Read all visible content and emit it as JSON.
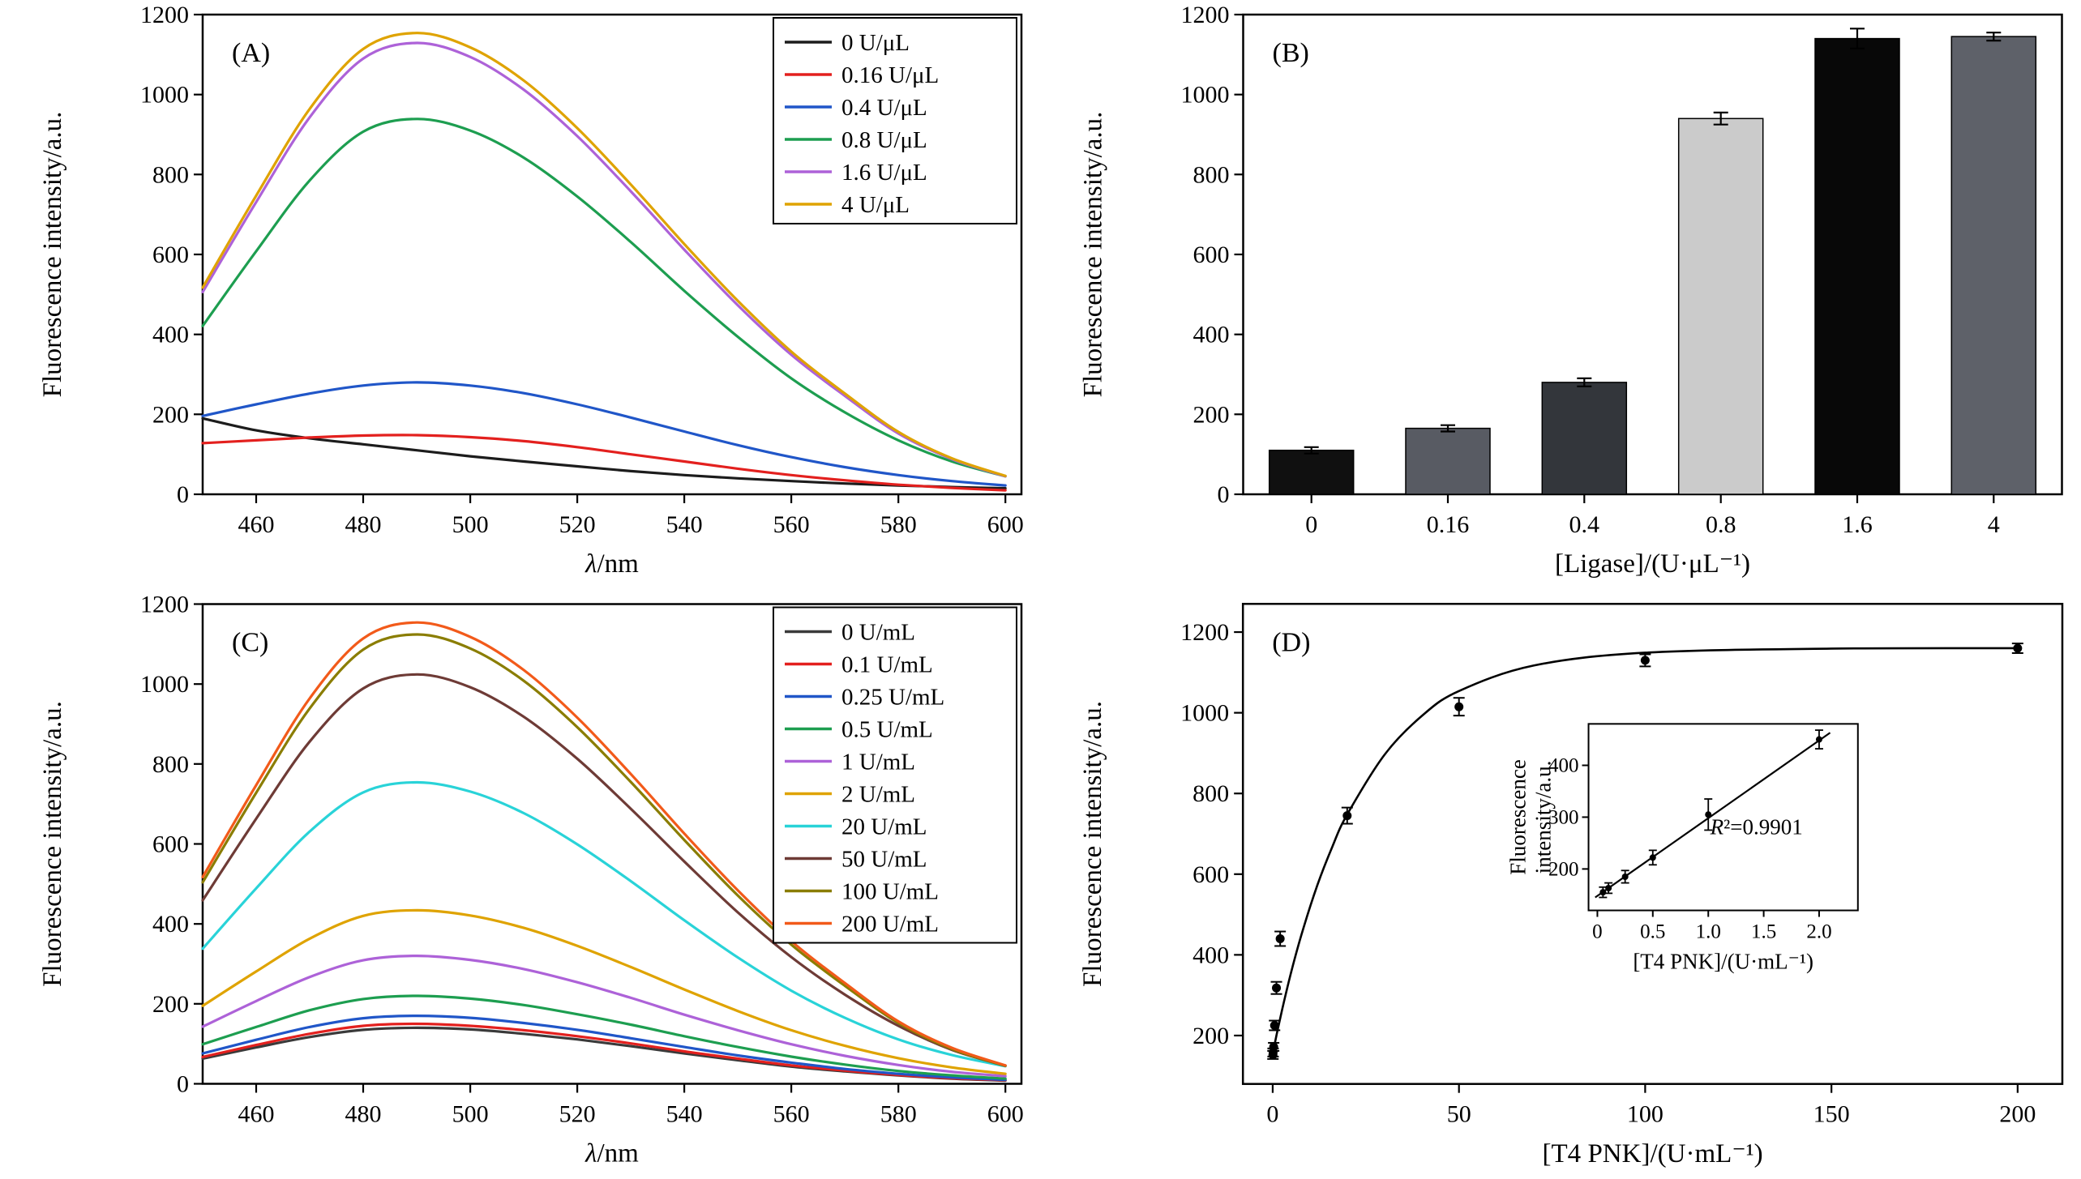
{
  "figure": {
    "background": "#ffffff",
    "text_color": "#000000"
  },
  "chart_data": [
    {
      "id": "panel-a",
      "type": "line",
      "panel_label": "(A)",
      "xlabel": "λ/nm",
      "ylabel": "Fluorescence intensity/a.u.",
      "xlim": [
        450,
        603
      ],
      "ylim": [
        0,
        1200
      ],
      "xticks": [
        460,
        480,
        500,
        520,
        540,
        560,
        580,
        600
      ],
      "yticks": [
        0,
        200,
        400,
        600,
        800,
        1000,
        1200
      ],
      "legend_position": "top-right",
      "x": [
        450,
        460,
        470,
        480,
        490,
        500,
        510,
        520,
        530,
        540,
        550,
        560,
        570,
        580,
        590,
        600
      ],
      "series": [
        {
          "name": "0 U/μL",
          "color": "#1c1c1c",
          "values": [
            190,
            160,
            140,
            125,
            110,
            95,
            82,
            70,
            58,
            48,
            40,
            33,
            27,
            22,
            18,
            15
          ]
        },
        {
          "name": "0.16 U/μL",
          "color": "#e3201e",
          "values": [
            128,
            135,
            142,
            147,
            148,
            143,
            133,
            118,
            100,
            82,
            64,
            48,
            35,
            24,
            16,
            10
          ]
        },
        {
          "name": "0.4 U/μL",
          "color": "#2056c8",
          "values": [
            196,
            225,
            252,
            272,
            280,
            272,
            253,
            225,
            192,
            157,
            123,
            93,
            68,
            48,
            33,
            22
          ]
        },
        {
          "name": "0.8 U/μL",
          "color": "#1d9e50",
          "values": [
            421,
            608,
            785,
            907,
            939,
            910,
            842,
            745,
            631,
            509,
            394,
            290,
            205,
            135,
            82,
            45
          ]
        },
        {
          "name": "1.6 U/μL",
          "color": "#ad62d8",
          "values": [
            506,
            731,
            943,
            1090,
            1129,
            1094,
            1012,
            896,
            758,
            612,
            473,
            349,
            246,
            152,
            88,
            45
          ]
        },
        {
          "name": "4 U/μL",
          "color": "#dfa300",
          "values": [
            517,
            747,
            964,
            1114,
            1154,
            1118,
            1035,
            916,
            775,
            626,
            484,
            357,
            252,
            156,
            90,
            46
          ]
        }
      ]
    },
    {
      "id": "panel-b",
      "type": "bar",
      "panel_label": "(B)",
      "xlabel": "[Ligase]/(U·μL⁻¹)",
      "ylabel": "Fluorescence intensity/a.u.",
      "ylim": [
        0,
        1200
      ],
      "yticks": [
        0,
        200,
        400,
        600,
        800,
        1000,
        1200
      ],
      "categories": [
        "0",
        "0.16",
        "0.4",
        "0.8",
        "1.6",
        "4"
      ],
      "values": [
        110,
        165,
        280,
        940,
        1140,
        1145
      ],
      "errors": [
        8,
        8,
        10,
        15,
        25,
        10
      ],
      "bar_colors": [
        "#101010",
        "#585b63",
        "#33363b",
        "#cbcbcb",
        "#080808",
        "#5e6169"
      ]
    },
    {
      "id": "panel-c",
      "type": "line",
      "panel_label": "(C)",
      "xlabel": "λ/nm",
      "ylabel": "Fluorescence intensity/a.u.",
      "xlim": [
        450,
        603
      ],
      "ylim": [
        0,
        1200
      ],
      "xticks": [
        460,
        480,
        500,
        520,
        540,
        560,
        580,
        600
      ],
      "yticks": [
        0,
        200,
        400,
        600,
        800,
        1000,
        1200
      ],
      "legend_position": "top-right",
      "x": [
        450,
        460,
        470,
        480,
        490,
        500,
        510,
        520,
        530,
        540,
        550,
        560,
        570,
        580,
        590,
        600
      ],
      "series": [
        {
          "name": "0 U/mL",
          "color": "#3a3a3a",
          "values": [
            63,
            91,
            117,
            135,
            140,
            136,
            125,
            111,
            94,
            76,
            59,
            43,
            31,
            21,
            13,
            8
          ]
        },
        {
          "name": "0.1 U/mL",
          "color": "#e3201e",
          "values": [
            67,
            97,
            125,
            145,
            150,
            145,
            134,
            119,
            101,
            81,
            63,
            46,
            33,
            22,
            14,
            9
          ]
        },
        {
          "name": "0.25 U/mL",
          "color": "#2056c8",
          "values": [
            76,
            110,
            142,
            164,
            170,
            165,
            152,
            135,
            114,
            92,
            71,
            53,
            37,
            25,
            16,
            10
          ]
        },
        {
          "name": "0.5 U/mL",
          "color": "#1d9e50",
          "values": [
            99,
            142,
            184,
            212,
            220,
            213,
            197,
            174,
            148,
            119,
            92,
            68,
            48,
            32,
            21,
            13
          ]
        },
        {
          "name": "1 U/mL",
          "color": "#ad62d8",
          "values": [
            143,
            207,
            267,
            309,
            320,
            310,
            287,
            254,
            215,
            173,
            134,
            99,
            70,
            47,
            30,
            19
          ]
        },
        {
          "name": "2 U/mL",
          "color": "#dfa300",
          "values": [
            195,
            281,
            363,
            420,
            434,
            421,
            390,
            345,
            292,
            236,
            182,
            134,
            95,
            64,
            41,
            25
          ]
        },
        {
          "name": "20 U/mL",
          "color": "#29d3d8",
          "values": [
            338,
            489,
            631,
            729,
            754,
            731,
            677,
            599,
            507,
            409,
            316,
            233,
            165,
            111,
            72,
            44
          ]
        },
        {
          "name": "50 U/mL",
          "color": "#6e3b36",
          "values": [
            459,
            663,
            856,
            989,
            1024,
            992,
            918,
            813,
            688,
            556,
            429,
            317,
            223,
            145,
            85,
            45
          ]
        },
        {
          "name": "100 U/mL",
          "color": "#8a7d00",
          "values": [
            504,
            728,
            939,
            1086,
            1124,
            1089,
            1008,
            892,
            755,
            610,
            471,
            348,
            245,
            152,
            87,
            45
          ]
        },
        {
          "name": "200 U/mL",
          "color": "#f25a1a",
          "values": [
            517,
            747,
            964,
            1114,
            1154,
            1118,
            1035,
            916,
            775,
            626,
            484,
            357,
            252,
            156,
            90,
            46
          ]
        }
      ]
    },
    {
      "id": "panel-d",
      "type": "scatter-fit",
      "panel_label": "(D)",
      "xlabel": "[T4 PNK]/(U·mL⁻¹)",
      "ylabel": "Fluorescence intensity/a.u.",
      "xlim": [
        -8,
        212
      ],
      "ylim": [
        80,
        1270
      ],
      "xticks": [
        0,
        50,
        100,
        150,
        200
      ],
      "yticks": [
        200,
        400,
        600,
        800,
        1000,
        1200
      ],
      "points": {
        "x": [
          0.05,
          0.1,
          0.25,
          0.5,
          1,
          2,
          20,
          50,
          100,
          200
        ],
        "y": [
          152,
          158,
          172,
          225,
          318,
          440,
          745,
          1015,
          1130,
          1160
        ],
        "yerr": [
          10,
          10,
          10,
          12,
          15,
          18,
          20,
          22,
          15,
          12
        ]
      },
      "fit": {
        "x": [
          0,
          1,
          2,
          3,
          5,
          8,
          12,
          16,
          20,
          30,
          40,
          50,
          70,
          100,
          150,
          200
        ],
        "y": [
          155,
          200,
          242,
          283,
          359,
          459,
          573,
          668,
          748,
          896,
          992,
          1054,
          1117,
          1149,
          1159,
          1160
        ]
      },
      "inset": {
        "xlabel": "[T4 PNK]/(U·mL⁻¹)",
        "ylabel_lines": [
          "Fluorescence",
          "intensity/a.u."
        ],
        "xlim": [
          -0.08,
          2.35
        ],
        "ylim": [
          120,
          480
        ],
        "xticks": [
          0,
          0.5,
          1,
          1.5,
          2
        ],
        "xtick_labels": [
          "0",
          "0.5",
          "1.0",
          "1.5",
          "2.0"
        ],
        "yticks": [
          200,
          300,
          400
        ],
        "points": {
          "x": [
            0.05,
            0.1,
            0.25,
            0.5,
            1.0,
            2.0
          ],
          "y": [
            155,
            163,
            185,
            222,
            305,
            450
          ],
          "yerr": [
            10,
            10,
            12,
            14,
            30,
            18
          ]
        },
        "fit_line": {
          "x1": -0.02,
          "y1": 145,
          "x2": 2.1,
          "y2": 463
        },
        "annotation": "R²=0.9901"
      }
    }
  ]
}
